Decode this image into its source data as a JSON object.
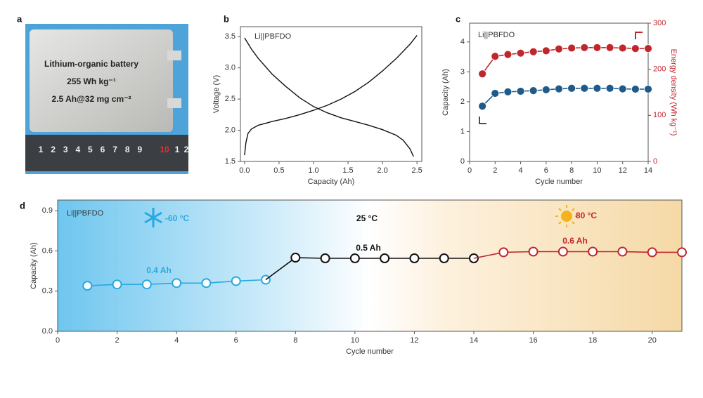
{
  "photo": {
    "panel": "a",
    "lines": [
      "Lithium-organic battery",
      "255 Wh kg⁻¹",
      "2.5 Ah@32 mg cm⁻²"
    ],
    "ruler": [
      "1",
      "2",
      "3",
      "4",
      "5",
      "6",
      "7",
      "8",
      "9",
      "10",
      "1",
      "2"
    ]
  },
  "chart_data": [
    {
      "panel": "b",
      "type": "line",
      "xlabel": "Capacity (Ah)",
      "ylabel": "Voltage (V)",
      "annotations": [
        "Li||PBFDO"
      ],
      "xlim": [
        -0.06,
        2.57
      ],
      "ylim": [
        1.5,
        3.66
      ],
      "xticks": [
        {
          "value": 0,
          "label": "0.0"
        },
        0.5,
        {
          "value": 1,
          "label": "1.0"
        },
        1.5,
        {
          "value": 2,
          "label": "2.0"
        },
        2.5
      ],
      "yticks": [
        1.5,
        {
          "value": 2,
          "label": "2.0"
        },
        2.5,
        {
          "value": 3,
          "label": "3.0"
        },
        3.5
      ],
      "series": [
        {
          "color": "#111111",
          "x": [
            0,
            0.1,
            0.2,
            0.4,
            0.6,
            0.8,
            1.0,
            1.2,
            1.4,
            1.6,
            1.8,
            2.0,
            2.2,
            2.3,
            2.4,
            2.45
          ],
          "values": [
            3.48,
            3.3,
            3.15,
            2.9,
            2.7,
            2.52,
            2.38,
            2.28,
            2.2,
            2.14,
            2.08,
            2.01,
            1.92,
            1.84,
            1.7,
            1.58
          ]
        },
        {
          "color": "#111111",
          "x": [
            0,
            0.02,
            0.05,
            0.1,
            0.2,
            0.4,
            0.6,
            0.8,
            1.0,
            1.2,
            1.4,
            1.6,
            1.8,
            2.0,
            2.2,
            2.4,
            2.5
          ],
          "values": [
            1.6,
            1.8,
            1.95,
            2.02,
            2.08,
            2.14,
            2.19,
            2.25,
            2.32,
            2.4,
            2.5,
            2.62,
            2.77,
            2.95,
            3.15,
            3.38,
            3.52
          ]
        }
      ]
    },
    {
      "panel": "c",
      "type": "line",
      "markers": "filled",
      "xlabel": "Cycle number",
      "ylabel": "Capacity (Ah)",
      "y2label": "Energy density (Wh kg⁻¹)",
      "annotations": [
        "Li||PBFDO"
      ],
      "xlim": [
        0,
        14
      ],
      "ylim": [
        0,
        4.63
      ],
      "y2lim": [
        0,
        300
      ],
      "xticks": [
        0,
        2,
        4,
        6,
        8,
        10,
        12,
        14
      ],
      "yticks": [
        0,
        1,
        2,
        3,
        4
      ],
      "y2ticks": [
        0,
        100,
        200,
        300
      ],
      "x": [
        1,
        2,
        3,
        4,
        5,
        6,
        7,
        8,
        9,
        10,
        11,
        12,
        13,
        14
      ],
      "series": [
        {
          "color": "#1f5b8a",
          "values": [
            1.85,
            2.28,
            2.33,
            2.35,
            2.37,
            2.4,
            2.43,
            2.45,
            2.45,
            2.45,
            2.45,
            2.43,
            2.42,
            2.42
          ]
        },
        {
          "color": "#c0272d",
          "axis": "y2",
          "values": [
            190,
            228,
            232,
            235,
            238,
            240,
            244,
            246,
            247,
            247,
            247,
            246,
            245,
            245
          ]
        }
      ]
    },
    {
      "panel": "d",
      "type": "line",
      "markers": "hollow",
      "connect": true,
      "xlabel": "Cycle number",
      "ylabel": "Capacity (Ah)",
      "annotations": [
        "Li||PBFDO",
        "-60 °C",
        "25 °C",
        "80 °C",
        "0.4 Ah",
        "0.5 Ah",
        "0.6 Ah"
      ],
      "xlim": [
        0,
        21
      ],
      "ylim": [
        0,
        0.98
      ],
      "xticks": [
        0,
        2,
        4,
        6,
        8,
        10,
        12,
        14,
        16,
        18,
        20
      ],
      "yticks": [
        {
          "value": 0,
          "label": "0.0"
        },
        0.3,
        0.6,
        0.9
      ],
      "series": [
        {
          "color": "#29a9e0",
          "x": [
            1,
            2,
            3,
            4,
            5,
            6,
            7
          ],
          "values": [
            0.34,
            0.35,
            0.35,
            0.36,
            0.36,
            0.375,
            0.385
          ]
        },
        {
          "color": "#111111",
          "x": [
            8,
            9,
            10,
            11,
            12,
            13,
            14
          ],
          "values": [
            0.55,
            0.545,
            0.545,
            0.545,
            0.545,
            0.545,
            0.545
          ]
        },
        {
          "color": "#c0272d",
          "x": [
            15,
            16,
            17,
            18,
            19,
            20,
            21
          ],
          "values": [
            0.59,
            0.595,
            0.595,
            0.595,
            0.595,
            0.59,
            0.59
          ]
        }
      ]
    }
  ]
}
